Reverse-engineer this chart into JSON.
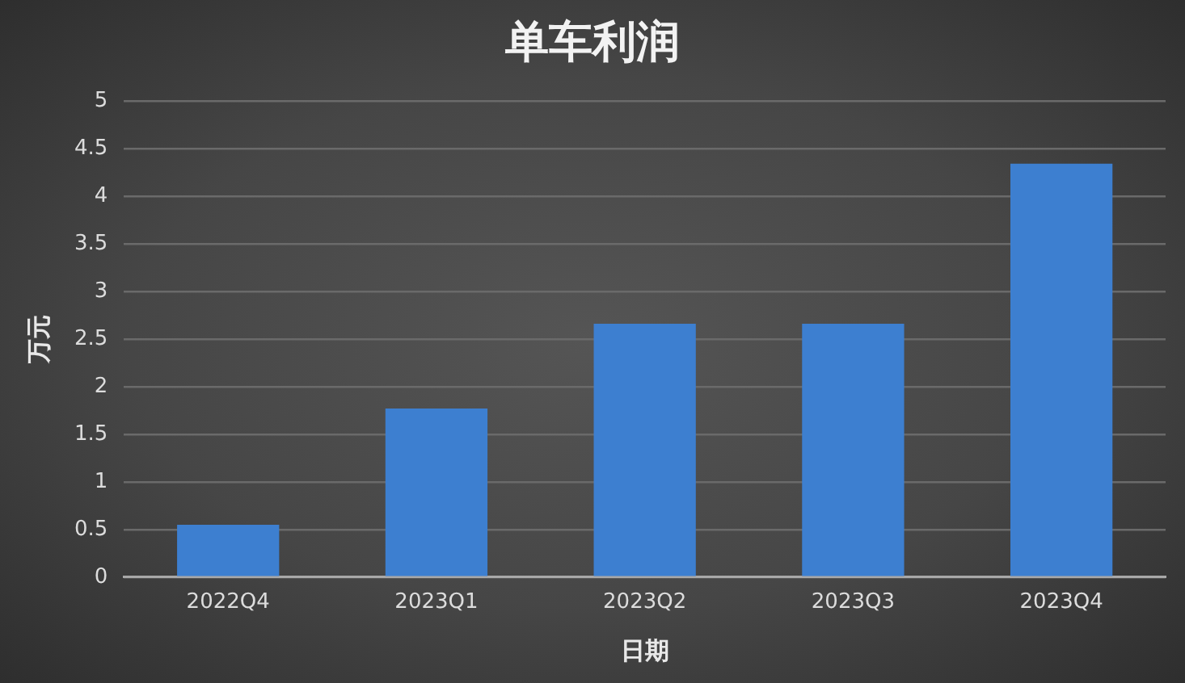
{
  "chart_data": {
    "type": "bar",
    "title": "单车利润",
    "xlabel": "日期",
    "ylabel": "万元",
    "categories": [
      "2022Q4",
      "2023Q1",
      "2023Q2",
      "2023Q3",
      "2023Q4"
    ],
    "values": [
      0.55,
      1.77,
      2.66,
      2.66,
      4.34
    ],
    "color": "#3d7fd0",
    "ylim": [
      0,
      5
    ],
    "yticks": [
      0,
      0.5,
      1,
      1.5,
      2,
      2.5,
      3,
      3.5,
      4,
      4.5,
      5
    ],
    "grid": "y",
    "legend": false
  }
}
